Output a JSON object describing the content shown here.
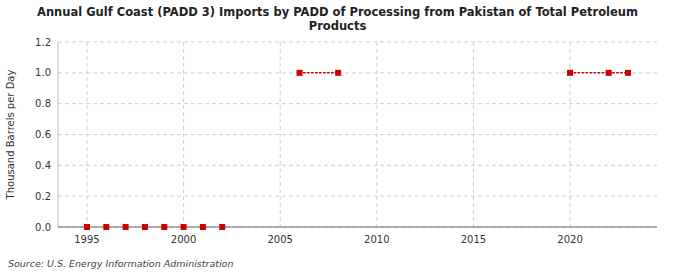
{
  "chart_data": {
    "type": "scatter",
    "title": "Annual Gulf Coast (PADD 3) Imports by PADD of Processing from Pakistan of Total Petroleum\nProducts",
    "y_label": "Thousand Barrels per Day",
    "annotations": [
      "Source: U.S. Energy Information Administration"
    ],
    "x": [
      1995,
      1996,
      1997,
      1998,
      1999,
      2000,
      2001,
      2002,
      2006,
      2008,
      2020,
      2022,
      2023
    ],
    "values": [
      0.0,
      0.0,
      0.0,
      0.0,
      0.0,
      0.0,
      0.0,
      0.0,
      1.0,
      1.0,
      1.0,
      1.0,
      1.0
    ],
    "connect_pairs": [
      [
        2006,
        2008
      ],
      [
        2020,
        2022
      ],
      [
        2022,
        2023
      ]
    ],
    "color": "#cc0000",
    "marker": "square",
    "line_style": "dotted",
    "xlim": [
      1993.5,
      2024.5
    ],
    "ylim": [
      0,
      1.2
    ],
    "xticks": [
      1995,
      2000,
      2005,
      2010,
      2015,
      2020
    ],
    "yticks": [
      {
        "value": 0.0,
        "label": "0.0"
      },
      0.2,
      0.4,
      0.6,
      0.8,
      {
        "value": 1.0,
        "label": "1.0"
      },
      1.2
    ],
    "grid": true
  }
}
